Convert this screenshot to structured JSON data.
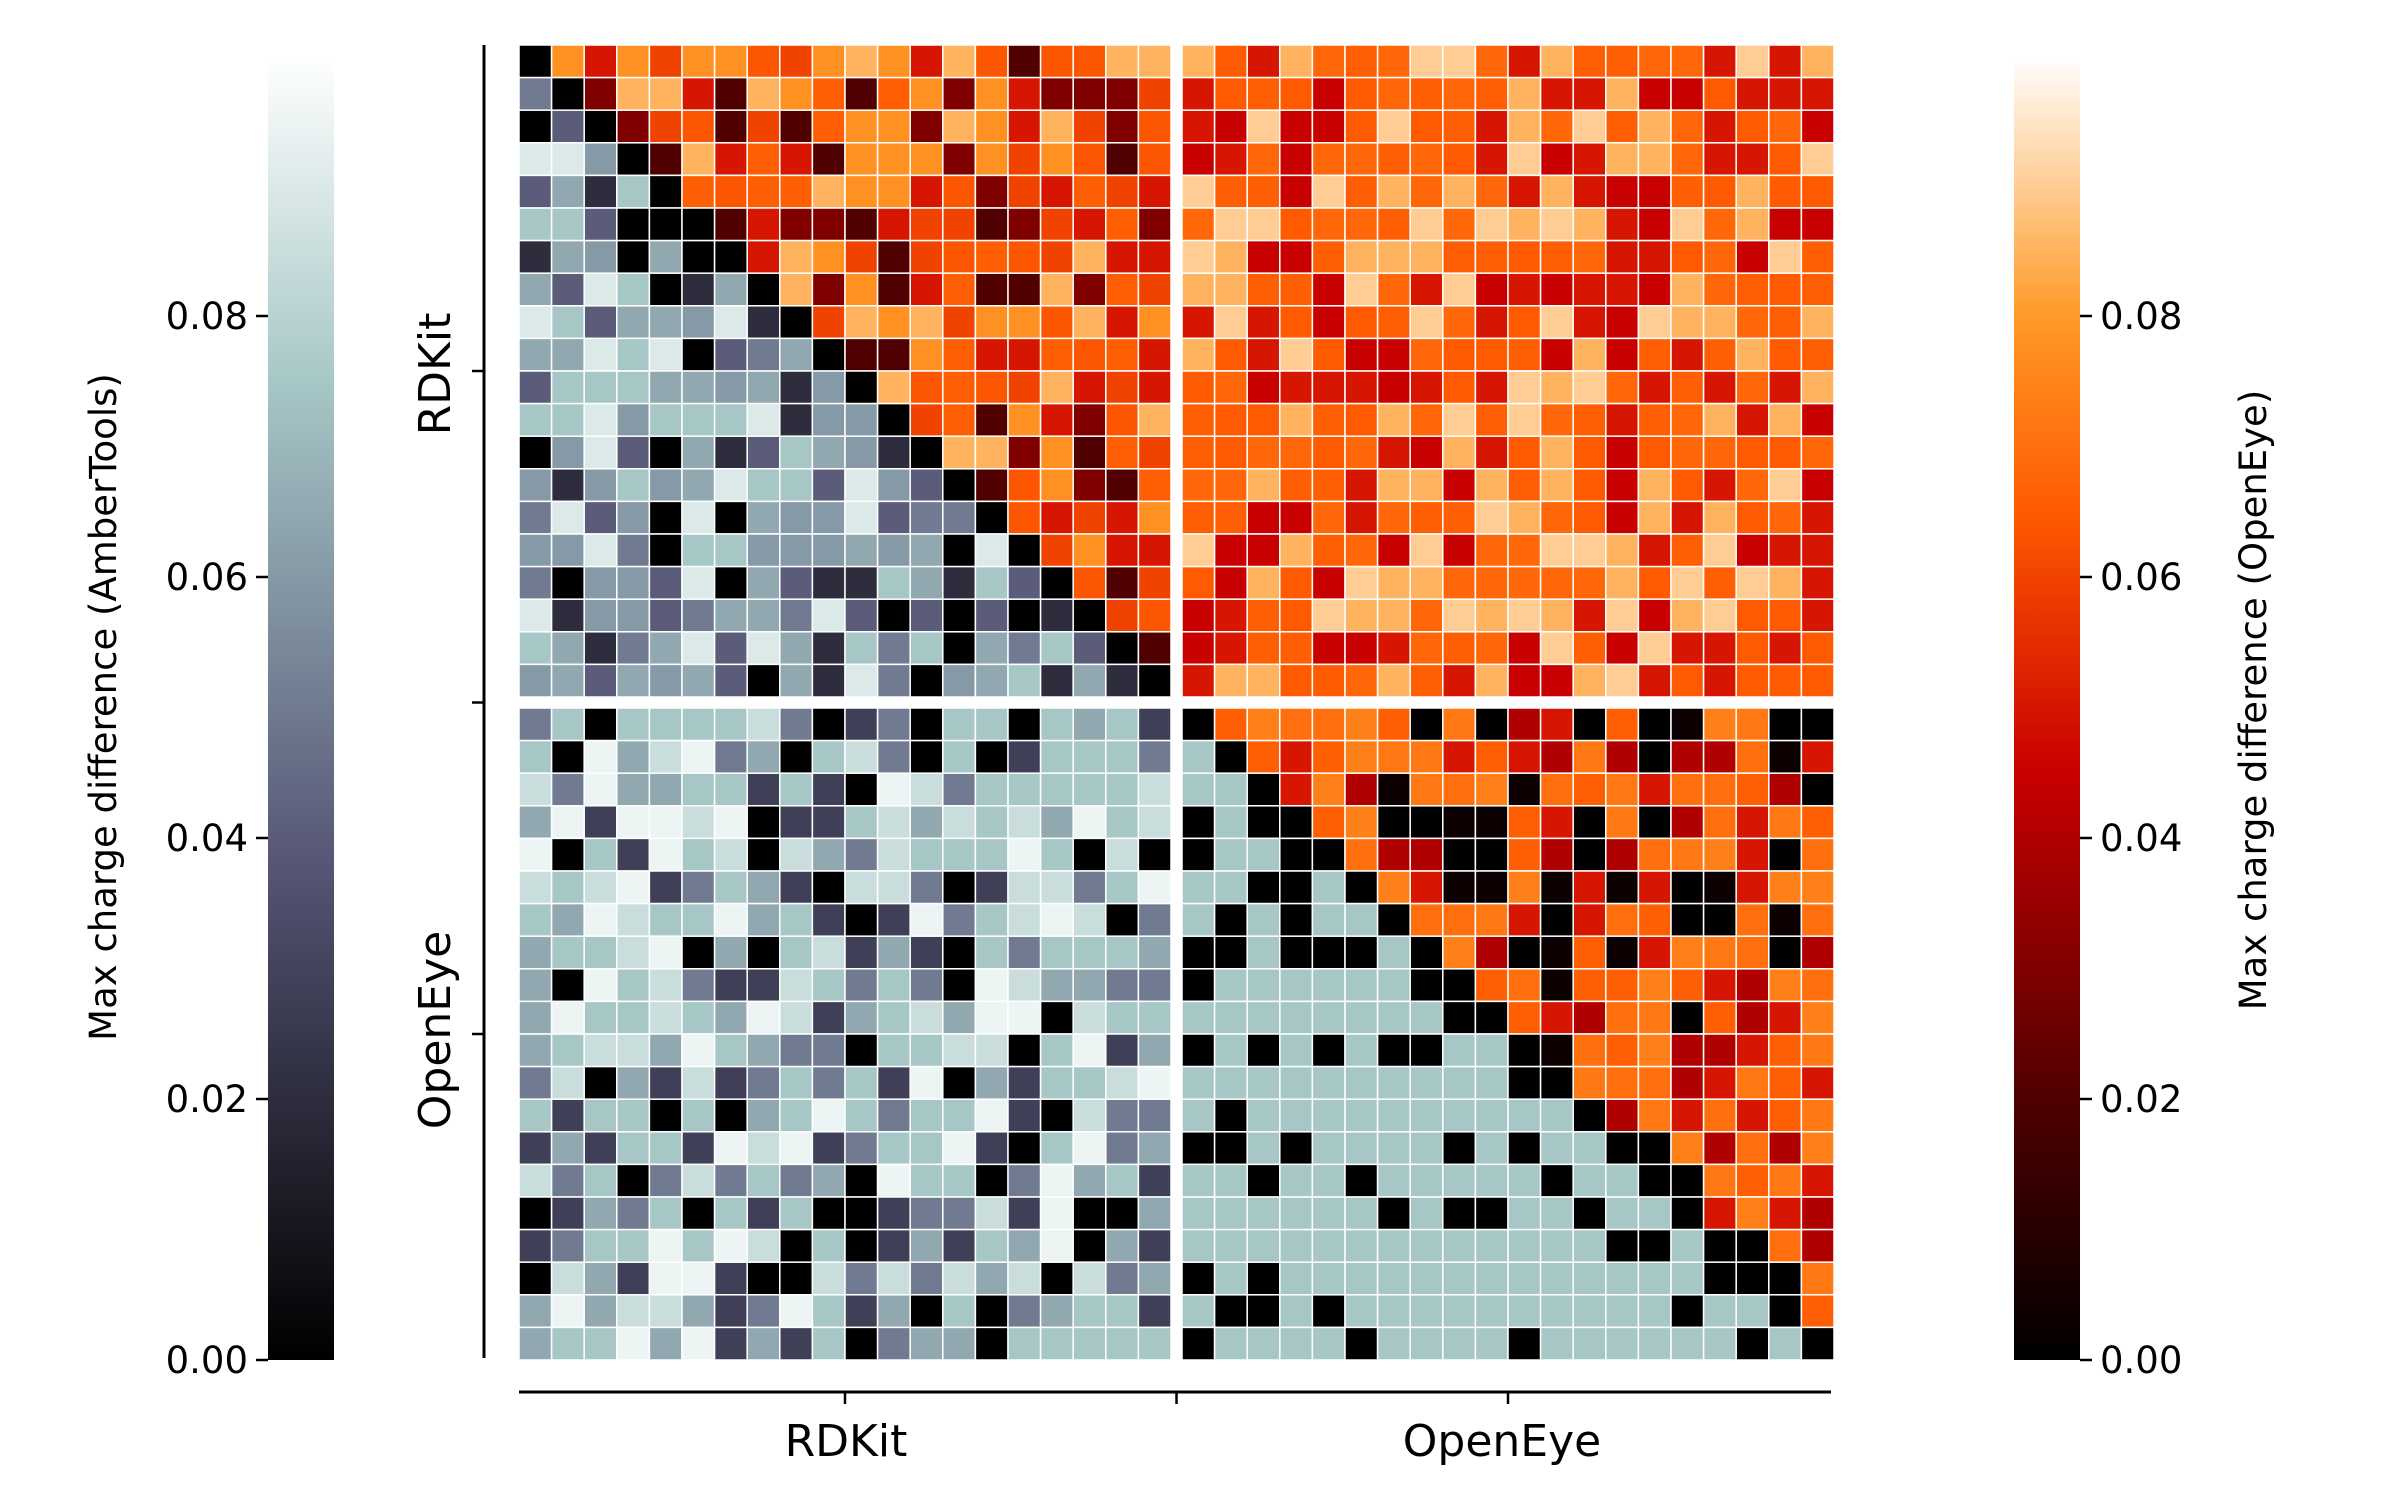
{
  "chart_data": {
    "type": "heatmap",
    "title": "",
    "row_groups": [
      "RDKit",
      "OpenEye"
    ],
    "col_groups": [
      "RDKit",
      "OpenEye"
    ],
    "group_size": 20,
    "xlabel": "",
    "ylabel": "",
    "lower_triangle": {
      "colorbar_label": "Max charge difference (AmberTools)",
      "colormap": "bone",
      "range": [
        0,
        0.1
      ],
      "ticks": [
        "0.00",
        "0.02",
        "0.04",
        "0.06",
        "0.08"
      ],
      "tick_values": [
        0,
        0.02,
        0.04,
        0.06,
        0.08
      ]
    },
    "upper_triangle": {
      "colorbar_label": "Max charge difference (OpenEye)",
      "colormap": "gist_heat",
      "range": [
        0,
        0.1
      ],
      "ticks": [
        "0.00",
        "0.02",
        "0.04",
        "0.06",
        "0.08"
      ],
      "tick_values": [
        0,
        0.02,
        0.04,
        0.06,
        0.08
      ]
    },
    "blocks": {
      "rdkit_rdkit_upper": {
        "min": 0.0,
        "max": 0.1,
        "typical": 0.065
      },
      "rdkit_rdkit_lower": {
        "min": 0.0,
        "max": 0.1,
        "typical": 0.065
      },
      "rdkit_openeye_upper": {
        "min": 0.04,
        "max": 0.1,
        "typical": 0.066
      },
      "openeye_rdkit_lower": {
        "min": 0.0,
        "max": 0.1,
        "typical": 0.07
      },
      "openeye_openeye_upper": {
        "min": 0.0,
        "max": 0.075,
        "typical": 0.07
      },
      "openeye_openeye_lower": {
        "min": 0.0,
        "max": 0.075,
        "typical": 0.075
      }
    },
    "legend": "colorbars left and right",
    "grid": true
  }
}
